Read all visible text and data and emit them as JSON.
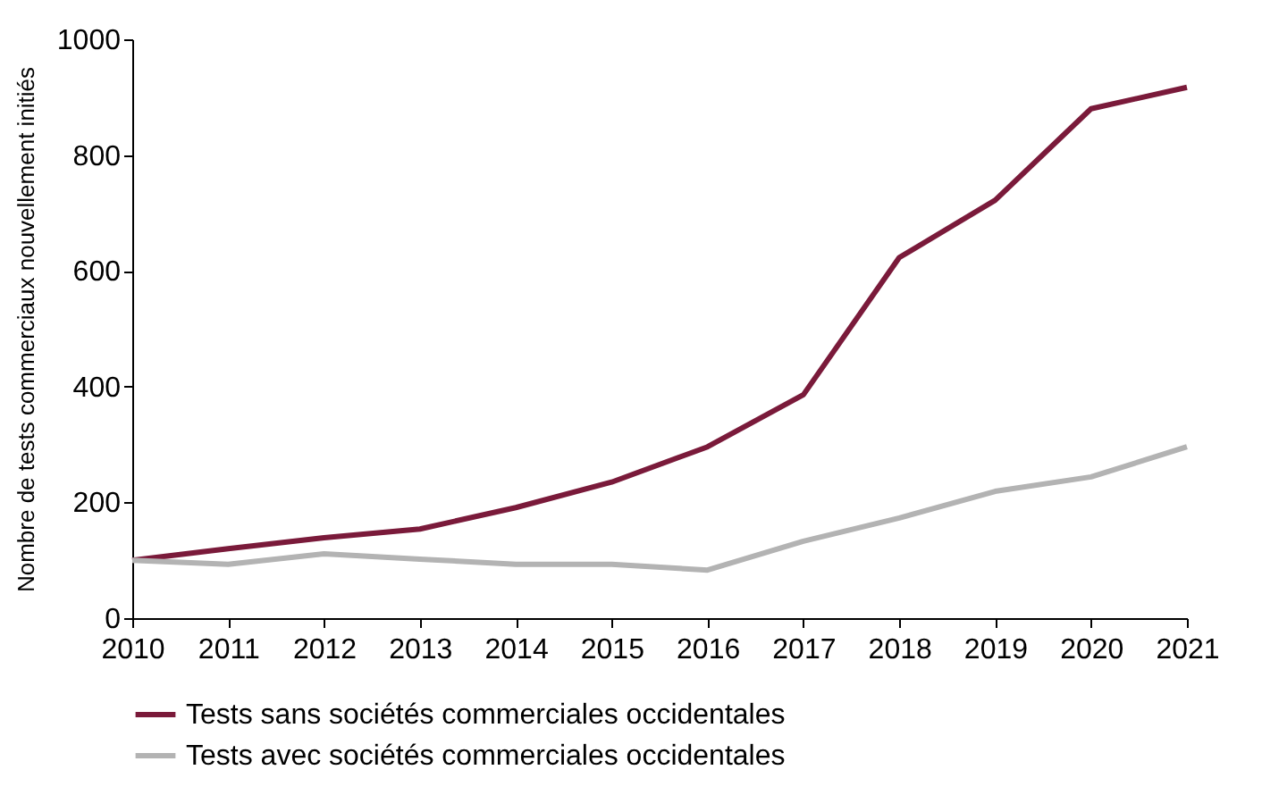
{
  "chart_data": {
    "type": "line",
    "ylabel": "Nombre de tests commerciaux nouvellement initiés",
    "x": [
      2010,
      2011,
      2012,
      2013,
      2014,
      2015,
      2016,
      2017,
      2018,
      2019,
      2020,
      2021
    ],
    "xlim": [
      2010,
      2021
    ],
    "xticks": [
      2010,
      2011,
      2012,
      2013,
      2014,
      2015,
      2016,
      2017,
      2018,
      2019,
      2020,
      2021
    ],
    "ylim": [
      0,
      1000
    ],
    "yticks": [
      0,
      200,
      400,
      600,
      800,
      1000
    ],
    "grid": false,
    "legend": "bottom",
    "marker": "none",
    "line_style": "solid",
    "series": [
      {
        "name": "Tests sans sociétés commerciales occidentales",
        "color": "#7a1a3a",
        "values": [
          100,
          120,
          139,
          154,
          191,
          235,
          296,
          386,
          623,
          722,
          880,
          917
        ]
      },
      {
        "name": "Tests avec sociétés commerciales occidentales",
        "color": "#b3b3b3",
        "values": [
          100,
          93,
          111,
          102,
          93,
          93,
          83,
          133,
          173,
          219,
          244,
          296
        ]
      }
    ]
  }
}
